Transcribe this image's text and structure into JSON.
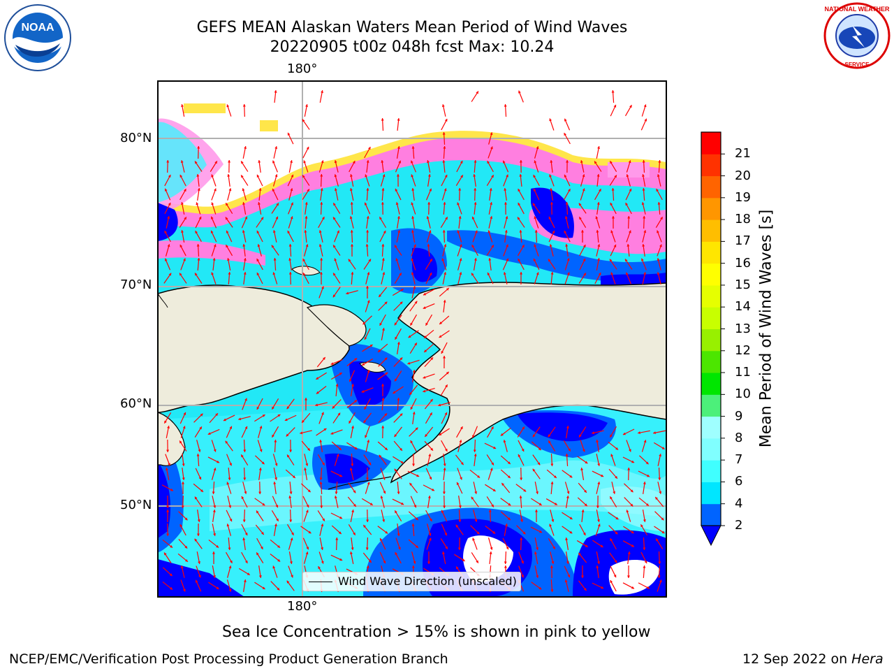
{
  "header": {
    "title_line1": "GEFS MEAN Alaskan Waters Mean Period of Wind Waves",
    "title_line2": "20220905 t00z 048h fcst   Max: 10.24"
  },
  "logos": {
    "left": "NOAA",
    "right": "NATIONAL WEATHER SERVICE"
  },
  "map": {
    "lon_label_top": "180°",
    "lon_label_bottom": "180°",
    "lat_labels": [
      "80°N",
      "70°N",
      "60°N",
      "50°N"
    ],
    "legend": "Wind Wave Direction (unscaled)",
    "colors": {
      "land": "#eeecdc",
      "arrows": "#ff0000",
      "ice_pink": "#ff7fe0",
      "ice_yellow": "#ffe64a"
    }
  },
  "colorbar": {
    "title": "Mean Period of Wind Waves [s]",
    "ticks": [
      "2",
      "4",
      "6",
      "7",
      "8",
      "9",
      "10",
      "11",
      "12",
      "13",
      "14",
      "15",
      "16",
      "17",
      "18",
      "19",
      "20",
      "21"
    ],
    "colors": [
      "#0064ff",
      "#00e6ff",
      "#40ffff",
      "#80ffff",
      "#9fffff",
      "#4cf07a",
      "#00e600",
      "#4ce600",
      "#98f000",
      "#c8ff00",
      "#e6ff00",
      "#ffff00",
      "#ffe600",
      "#ffbe00",
      "#ff9600",
      "#ff6400",
      "#ff3200",
      "#ff0000"
    ],
    "under_color": "#0000ff"
  },
  "notes": {
    "sea_ice": "Sea Ice Concentration > 15% is shown in pink to yellow"
  },
  "footer": {
    "left": "NCEP/EMC/Verification Post Processing Product Generation Branch",
    "right_date": "12 Sep 2022 on ",
    "right_machine": "Hera"
  }
}
